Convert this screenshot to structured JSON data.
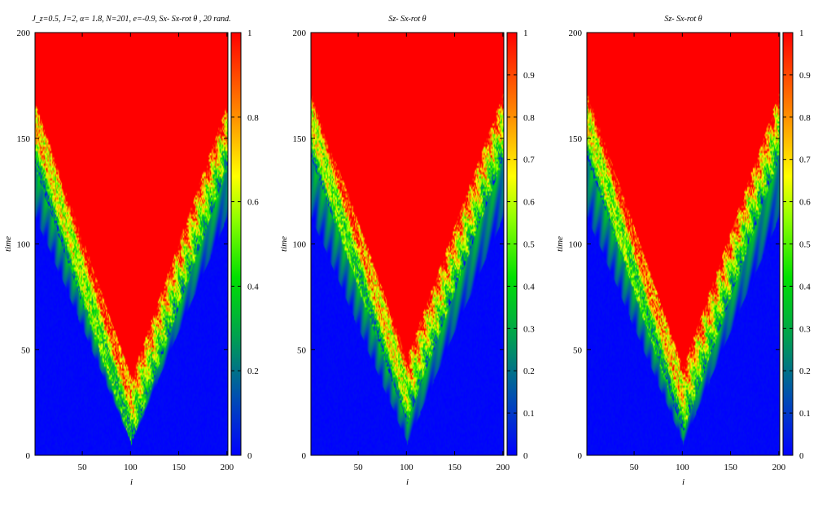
{
  "figure": {
    "description_free": true
  },
  "chart_data": [
    {
      "type": "heatmap",
      "title": "J_z=0.5,  J=2, α= 1.8,   N=201,  e=-0.9, Sx- Sx-rot θ , 20 rand.",
      "xlabel": "i",
      "ylabel": "time",
      "xlim": [
        1,
        201
      ],
      "ylim": [
        0,
        200
      ],
      "x_ticks": [
        50,
        100,
        150,
        200
      ],
      "y_ticks": [
        0,
        50,
        100,
        150,
        200
      ],
      "colorbar": {
        "range": [
          0,
          1
        ],
        "ticks": [
          0,
          0.2,
          0.4,
          0.6,
          0.8,
          1
        ]
      },
      "colormap": [
        "#0000ff",
        "#0060a0",
        "#00a050",
        "#00e000",
        "#80ff00",
        "#ffff00",
        "#ff9000",
        "#ff0000"
      ],
      "lightcone": {
        "center_site": 100,
        "left_edge_site": 0,
        "right_edge_site": 201,
        "front_start_time": 5,
        "central_red_bottom_time": 30,
        "red_top_time_at_edges": 160
      }
    },
    {
      "type": "heatmap",
      "title": "Sz- Sx-rot θ",
      "xlabel": "i",
      "ylabel": "time",
      "xlim": [
        1,
        201
      ],
      "ylim": [
        0,
        200
      ],
      "x_ticks": [
        50,
        100,
        150,
        200
      ],
      "y_ticks": [
        0,
        50,
        100,
        150,
        200
      ],
      "colorbar": {
        "range": [
          0,
          1
        ],
        "ticks": [
          0,
          0.1,
          0.2,
          0.3,
          0.4,
          0.5,
          0.6,
          0.7,
          0.8,
          0.9,
          1
        ]
      },
      "colormap": [
        "#0000ff",
        "#0060a0",
        "#00a050",
        "#00e000",
        "#80ff00",
        "#ffff00",
        "#ff9000",
        "#ff0000"
      ],
      "lightcone": {
        "center_site": 100,
        "left_edge_site": 0,
        "right_edge_site": 201,
        "front_start_time": 5,
        "central_red_bottom_time": 40,
        "red_top_time_at_edges": 165
      }
    },
    {
      "type": "heatmap",
      "title": "Sz- Sx-rot θ",
      "xlabel": "i",
      "ylabel": "time",
      "xlim": [
        1,
        201
      ],
      "ylim": [
        0,
        200
      ],
      "x_ticks": [
        50,
        100,
        150,
        200
      ],
      "y_ticks": [
        0,
        50,
        100,
        150,
        200
      ],
      "colorbar": {
        "range": [
          0,
          1
        ],
        "ticks": [
          0,
          0.1,
          0.2,
          0.3,
          0.4,
          0.5,
          0.6,
          0.7,
          0.8,
          0.9,
          1
        ]
      },
      "colormap": [
        "#0000ff",
        "#0060a0",
        "#00a050",
        "#00e000",
        "#80ff00",
        "#ffff00",
        "#ff9000",
        "#ff0000"
      ],
      "lightcone": {
        "center_site": 100,
        "left_edge_site": 0,
        "right_edge_site": 201,
        "front_start_time": 5,
        "central_red_bottom_time": 35,
        "red_top_time_at_edges": 165
      }
    }
  ]
}
